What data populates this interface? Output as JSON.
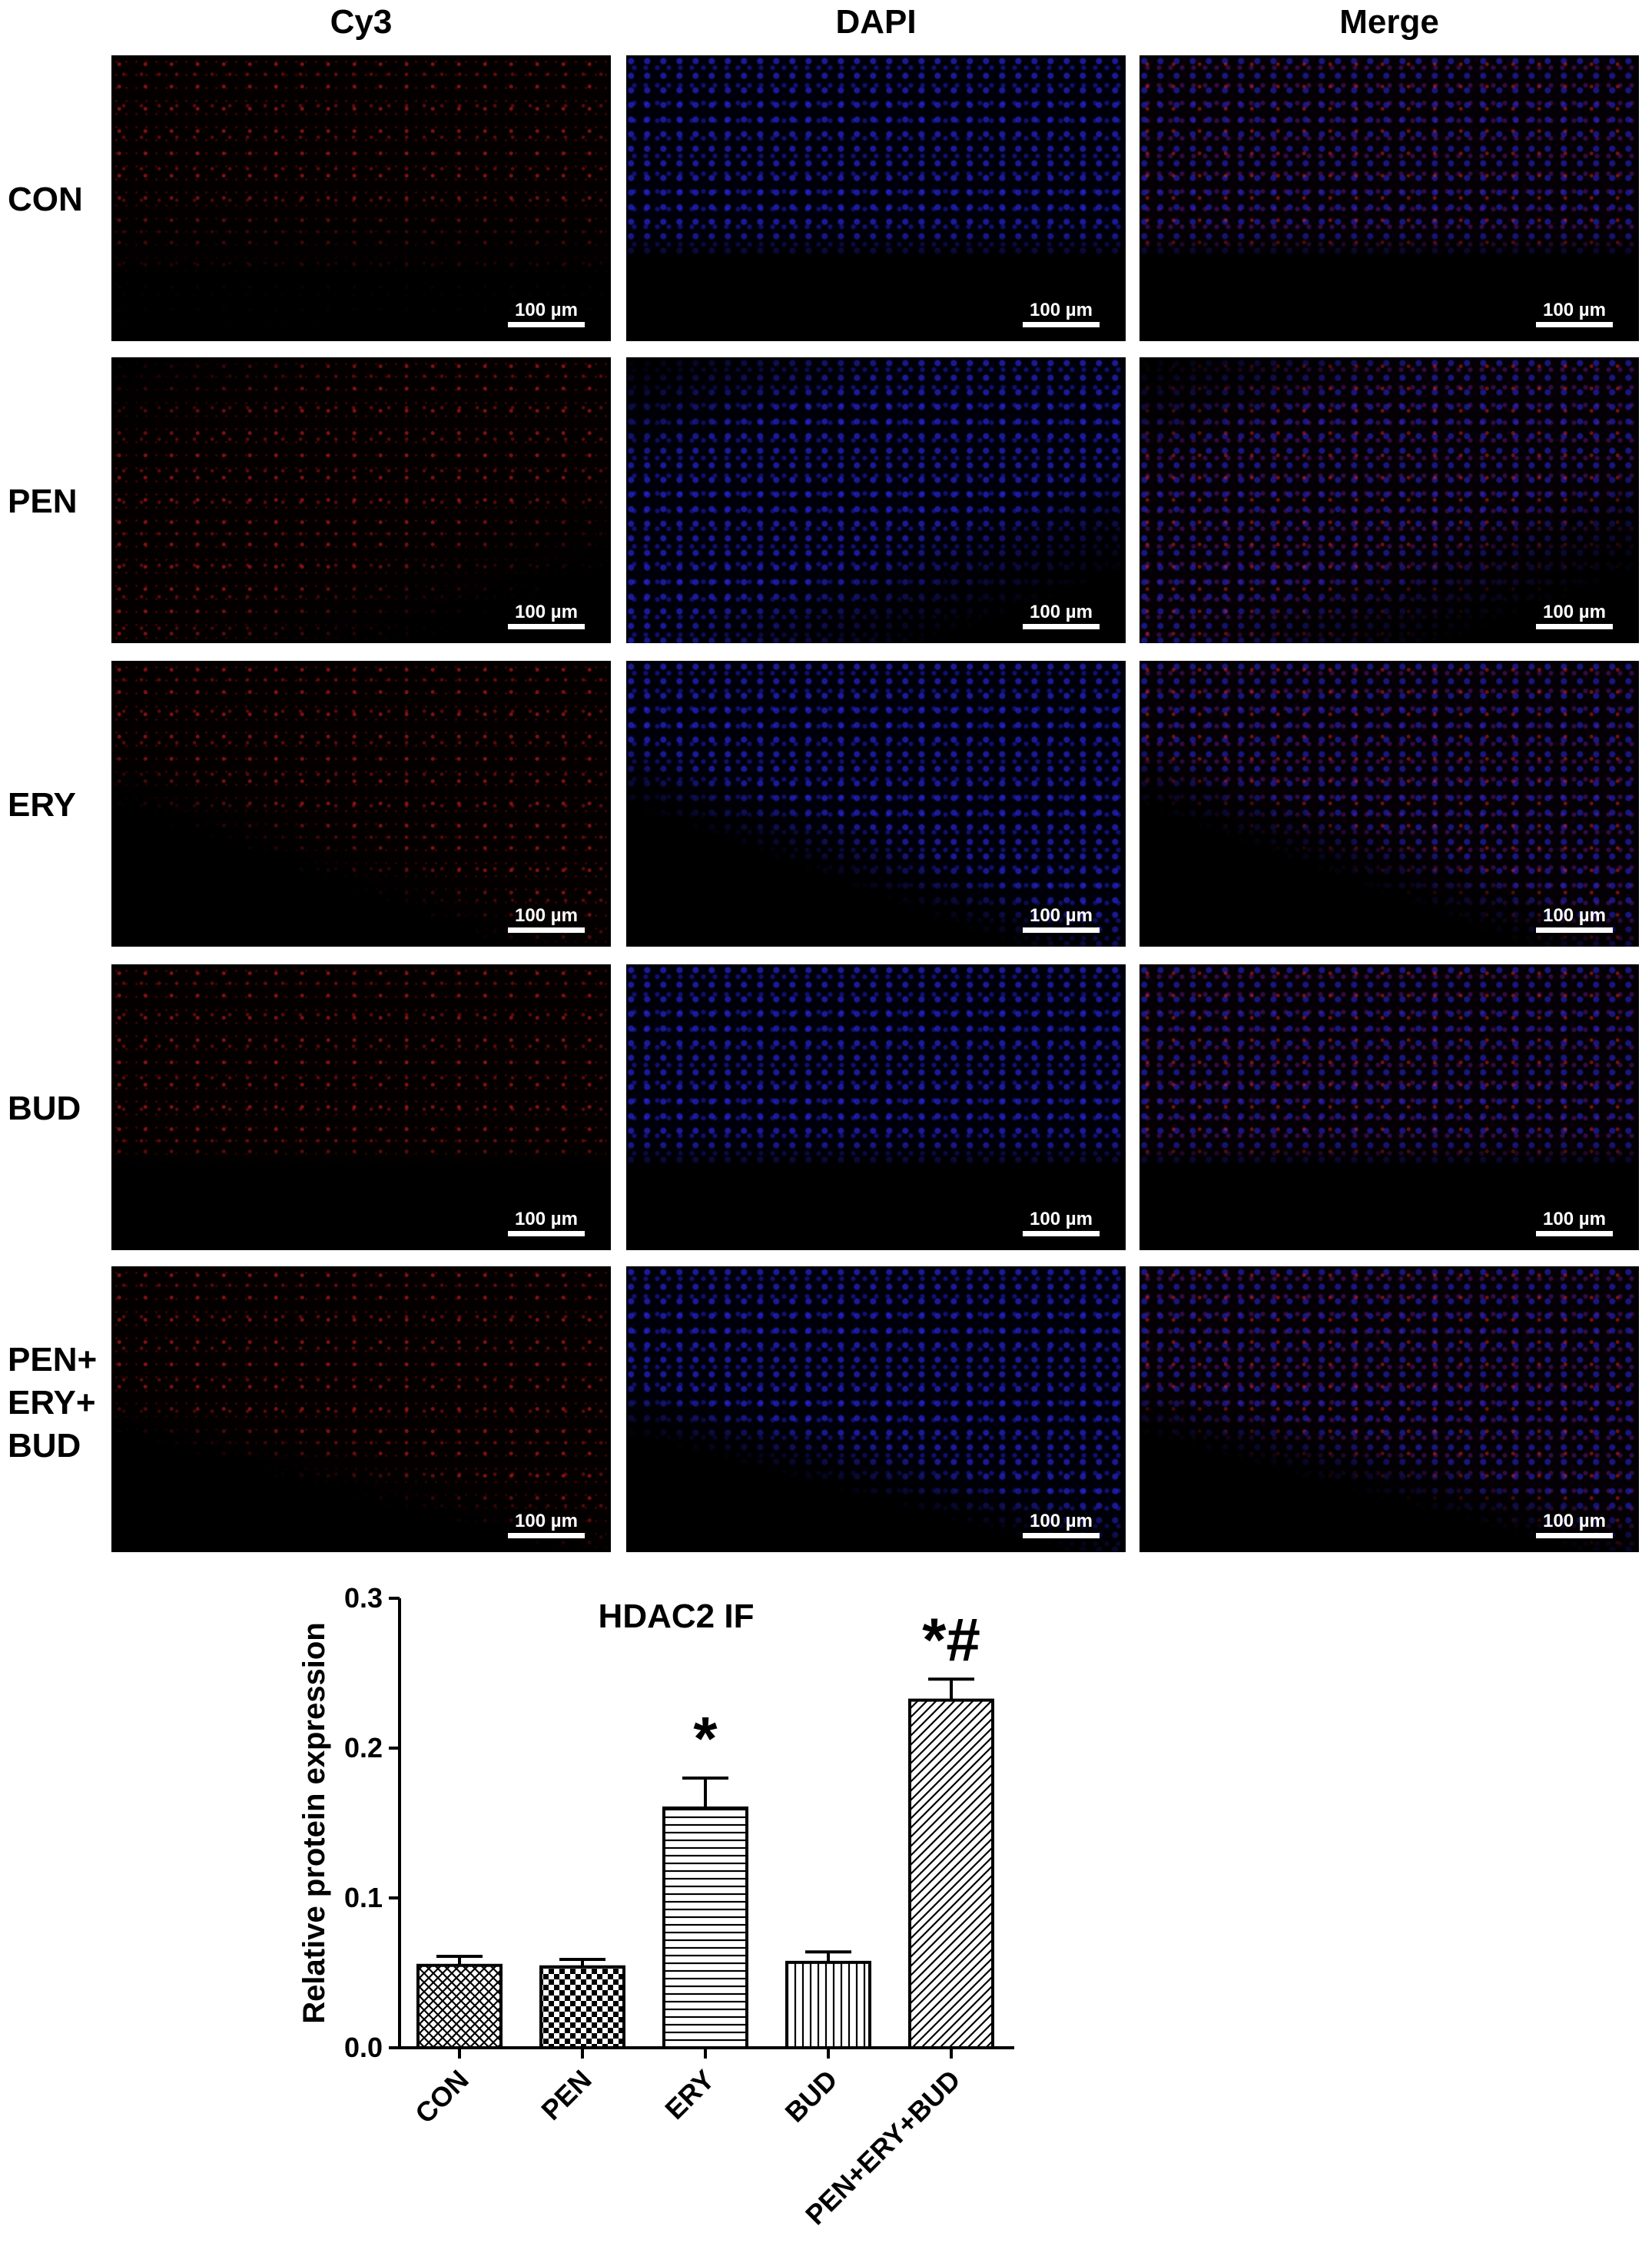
{
  "figure": {
    "column_headers": [
      "Cy3",
      "DAPI",
      "Merge"
    ],
    "row_labels": [
      "CON",
      "PEN",
      "ERY",
      "BUD",
      "PEN+\nERY+\nBUD"
    ],
    "scale_bar_label": "100 µm"
  },
  "chart_data": {
    "type": "bar",
    "title": "HDAC2 IF",
    "xlabel": "",
    "ylabel": "Relative protein expression",
    "categories": [
      "CON",
      "PEN",
      "ERY",
      "BUD",
      "PEN+ERY+BUD"
    ],
    "values": [
      0.055,
      0.054,
      0.16,
      0.057,
      0.232
    ],
    "errors": [
      0.006,
      0.005,
      0.02,
      0.007,
      0.014
    ],
    "annotations": [
      "",
      "",
      "*",
      "",
      "*#"
    ],
    "fill_patterns": [
      "crosshatch",
      "checker",
      "horizontal-lines",
      "vertical-lines",
      "diagonal-lines"
    ],
    "ylim": [
      0,
      0.3
    ],
    "yticks": [
      "0.0",
      "0.1",
      "0.2",
      "0.3"
    ],
    "grid": false,
    "legend": "none"
  }
}
